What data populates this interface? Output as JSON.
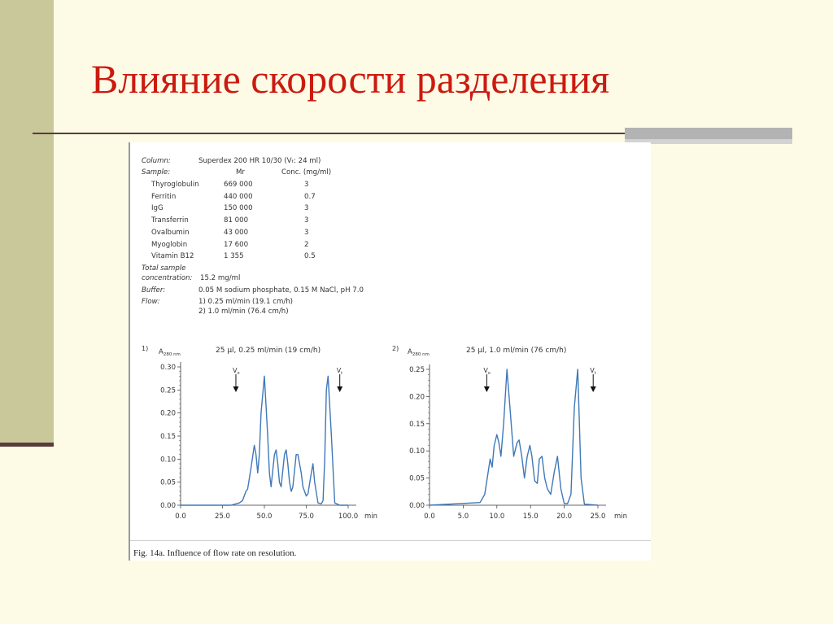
{
  "slide": {
    "title": "Влияние скорости разделения"
  },
  "figure": {
    "info": {
      "column_label": "Column:",
      "column_value": "Superdex 200 HR 10/30 (Vₜ: 24 ml)",
      "sample_label": "Sample:",
      "mr_header": "Mr",
      "conc_header": "Conc. (mg/ml)",
      "samples": [
        {
          "name": "Thyroglobulin",
          "mr": "669 000",
          "conc": "3"
        },
        {
          "name": "Ferritin",
          "mr": "440 000",
          "conc": "0.7"
        },
        {
          "name": "IgG",
          "mr": "150 000",
          "conc": "3"
        },
        {
          "name": "Transferrin",
          "mr": "81 000",
          "conc": "3"
        },
        {
          "name": "Ovalbumin",
          "mr": "43 000",
          "conc": "3"
        },
        {
          "name": "Myoglobin",
          "mr": "17 600",
          "conc": "2"
        },
        {
          "name": "Vitamin B12",
          "mr": "1 355",
          "conc": "0.5"
        }
      ],
      "total_label_1": "Total sample",
      "total_label_2": "concentration:",
      "total_value": "15.2 mg/ml",
      "buffer_label": "Buffer:",
      "buffer_value": "0.05 M sodium phosphate, 0.15 M NaCl, pH 7.0",
      "flow_label": "Flow:",
      "flow_1": "1) 0.25 ml/min (19.1 cm/h)",
      "flow_2": "2) 1.0 ml/min (76.4 cm/h)"
    },
    "caption": "Fig. 14a. Influence of flow rate on resolution."
  },
  "chart_data": [
    {
      "type": "line",
      "panel_label": "1)",
      "ylabel": "A280 nm",
      "title": "25 µl, 0.25 ml/min (19 cm/h)",
      "xunit": "min",
      "xlim": [
        0,
        100
      ],
      "ylim": [
        0,
        0.3
      ],
      "xticks": [
        "0.0",
        "25.0",
        "50.0",
        "75.0",
        "100.0"
      ],
      "yticks": [
        "0.00",
        "0.05",
        "0.10",
        "0.15",
        "0.20",
        "0.25",
        "0.30"
      ],
      "markers": [
        {
          "label": "Vo",
          "x": 33
        },
        {
          "label": "Vt",
          "x": 95
        }
      ],
      "x": [
        0,
        30,
        35,
        37,
        39,
        40,
        42,
        44,
        45,
        46,
        47,
        48,
        50,
        52,
        53,
        54,
        56,
        57,
        58,
        59,
        60,
        62,
        63,
        64,
        65,
        66,
        67,
        69,
        70,
        72,
        73,
        74,
        75,
        76,
        78,
        79,
        80,
        82,
        84,
        85,
        86,
        87,
        88,
        90,
        92,
        95,
        100
      ],
      "y": [
        0,
        0,
        0.005,
        0.01,
        0.03,
        0.035,
        0.08,
        0.13,
        0.11,
        0.07,
        0.11,
        0.2,
        0.28,
        0.15,
        0.07,
        0.04,
        0.11,
        0.12,
        0.09,
        0.05,
        0.04,
        0.11,
        0.12,
        0.09,
        0.05,
        0.03,
        0.04,
        0.11,
        0.11,
        0.07,
        0.04,
        0.03,
        0.02,
        0.025,
        0.07,
        0.09,
        0.05,
        0.005,
        0.003,
        0.01,
        0.1,
        0.25,
        0.28,
        0.15,
        0.005,
        0,
        0
      ]
    },
    {
      "type": "line",
      "panel_label": "2)",
      "ylabel": "A280 nm",
      "title": "25 µl, 1.0 ml/min (76 cm/h)",
      "xunit": "min",
      "xlim": [
        0,
        25
      ],
      "ylim": [
        0,
        0.25
      ],
      "xticks": [
        "0.0",
        "5.0",
        "10.0",
        "15.0",
        "20.0",
        "25.0"
      ],
      "yticks": [
        "0.00",
        "0.05",
        "0.10",
        "0.15",
        "0.20",
        "0.25"
      ],
      "markers": [
        {
          "label": "Vo",
          "x": 8.5
        },
        {
          "label": "Vt",
          "x": 24.3
        }
      ],
      "x": [
        0,
        7.5,
        8.2,
        8.7,
        9.0,
        9.3,
        9.6,
        10.0,
        10.3,
        10.6,
        11.0,
        11.5,
        12.0,
        12.5,
        13.0,
        13.3,
        13.7,
        14.1,
        14.5,
        14.9,
        15.2,
        15.6,
        16.0,
        16.3,
        16.7,
        17.1,
        17.5,
        18.0,
        18.5,
        19.0,
        19.5,
        20.0,
        20.5,
        21.0,
        21.5,
        22.0,
        22.5,
        23.0,
        25.0
      ],
      "y": [
        0,
        0.005,
        0.02,
        0.06,
        0.085,
        0.07,
        0.11,
        0.13,
        0.115,
        0.09,
        0.15,
        0.25,
        0.17,
        0.09,
        0.115,
        0.12,
        0.09,
        0.05,
        0.09,
        0.11,
        0.09,
        0.045,
        0.04,
        0.085,
        0.09,
        0.05,
        0.03,
        0.02,
        0.06,
        0.09,
        0.03,
        0.003,
        0.003,
        0.02,
        0.18,
        0.25,
        0.05,
        0.002,
        0
      ]
    }
  ]
}
